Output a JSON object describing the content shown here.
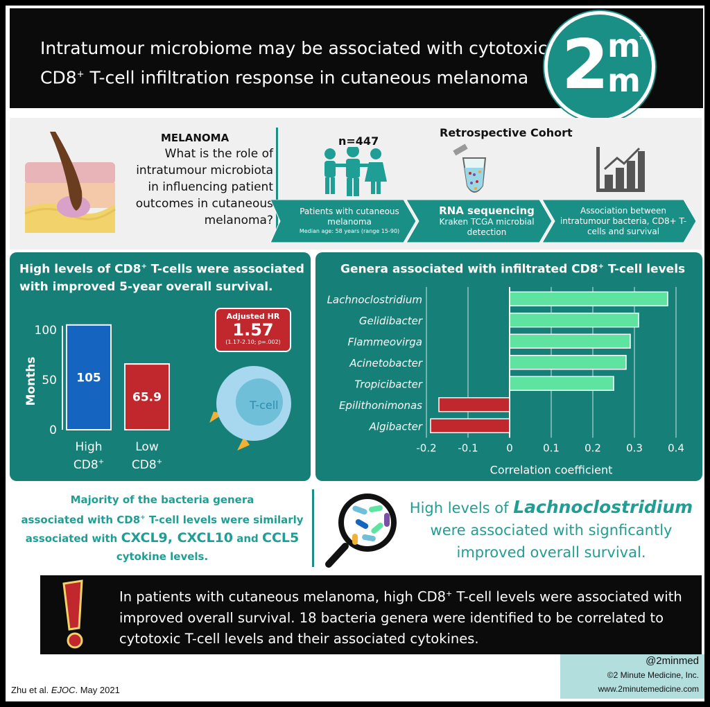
{
  "header": {
    "title_line1": "Intratumour microbiome may be associated with cytotoxic",
    "title_line2_pre": "CD8",
    "title_line2_sup": "+",
    "title_line2_post": " T-cell infiltration response in cutaneous melanoma",
    "logo": {
      "digit": "2",
      "m_top": "m",
      "m_bottom": "m",
      "tm": "TM"
    }
  },
  "study": {
    "question_title": "MELANOMA",
    "question": "What is the role of intratumour microbiota in influencing patient outcomes in cutaneous melanoma?",
    "n": "n=447",
    "design": "Retrospective Cohort",
    "steps": [
      {
        "line1": "Patients with cutaneous melanoma",
        "line2": "Median age: 58 years (range 15-90)"
      },
      {
        "line1": "RNA sequencing",
        "line2": "Kraken TCGA microbial detection"
      },
      {
        "line1": "Association between intratumour bacteria, CD8+ T-cells and survival",
        "line2": ""
      }
    ]
  },
  "survival_panel": {
    "heading_pre": "High levels of CD8",
    "heading_sup": "+",
    "heading_post": " T-cells were associated with improved 5-year overall survival.",
    "hr_label": "Adjusted HR",
    "hr_value": "1.57",
    "hr_ci": "(1.17-2.10; p=.002)",
    "cell_label": "T-cell"
  },
  "genera_panel": {
    "heading_pre": "Genera associated with infiltrated CD8",
    "heading_sup": "+",
    "heading_post": " T-cell levels"
  },
  "chart_data": [
    {
      "type": "bar",
      "ylabel": "Months",
      "ylim": [
        0,
        100
      ],
      "yticks": [
        "0",
        "50",
        "100"
      ],
      "categories": [
        "High CD8+",
        "Low CD8+"
      ],
      "category_lines": [
        [
          "High",
          "CD8",
          "+"
        ],
        [
          "Low",
          "CD8",
          "+"
        ]
      ],
      "values": [
        105,
        65.9
      ],
      "data_labels": [
        "105",
        "65.9"
      ],
      "colors": [
        "#1565c0",
        "#c0282d"
      ]
    },
    {
      "type": "bar",
      "orientation": "horizontal",
      "xlabel": "Correlation coefficient",
      "xlim": [
        -0.2,
        0.4
      ],
      "xticks": [
        "-0.2",
        "-0.1",
        "0",
        "0.1",
        "0.2",
        "0.3",
        "0.4"
      ],
      "categories": [
        "Lachnoclostridium",
        "Gelidibacter",
        "Flammeovirga",
        "Acinetobacter",
        "Tropicibacter",
        "Epilithonimonas",
        "Algibacter"
      ],
      "values": [
        0.38,
        0.31,
        0.29,
        0.28,
        0.25,
        -0.17,
        -0.19
      ],
      "colors": {
        "positive": "#5fe3a1",
        "negative": "#c0282d"
      }
    }
  ],
  "cytokines": {
    "line1": "Majority of the bacteria genera",
    "line2_pre": "associated with CD8",
    "line2_sup": "+",
    "line2_post": " T-cell levels were similarly",
    "line3_pre": "associated with ",
    "line3_highlight": "CXCL9, CXCL10",
    "line3_mid": " and ",
    "line3_highlight2": "CCL5",
    "line4": "cytokine levels."
  },
  "lachno": {
    "pre": "High levels of ",
    "genus": "Lachnoclostridium",
    "post": "were associated with signficantly improved overall survival."
  },
  "conclusion": {
    "part1": "In patients with cutaneous melanoma, high CD8",
    "sup": "+",
    "part2": " T-cell levels were associated with improved overall survival. 18 bacteria genera were identified to be correlated to cytotoxic T-cell levels and their associated cytokines."
  },
  "footer": {
    "citation_pre": "Zhu et al. ",
    "citation_journal": "EJOC",
    "citation_post": ". May 2021",
    "handle": "@2minmed",
    "copyright": "©2 Minute Medicine, Inc.",
    "website": "www.2minutemedicine.com"
  },
  "colors": {
    "teal": "#167f78",
    "bright_teal": "#1f9e95",
    "green_bar": "#5fe3a1",
    "red": "#c0282d",
    "blue": "#1565c0"
  }
}
